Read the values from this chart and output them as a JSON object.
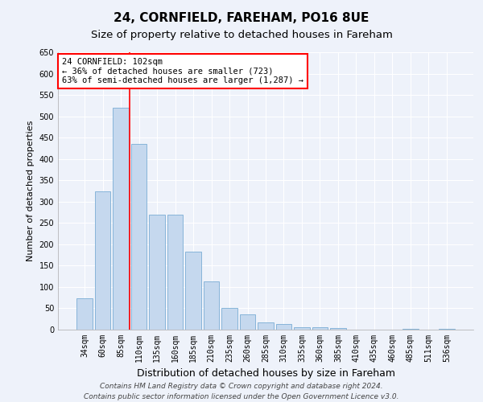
{
  "title": "24, CORNFIELD, FAREHAM, PO16 8UE",
  "subtitle": "Size of property relative to detached houses in Fareham",
  "xlabel": "Distribution of detached houses by size in Fareham",
  "ylabel": "Number of detached properties",
  "categories": [
    "34sqm",
    "60sqm",
    "85sqm",
    "110sqm",
    "135sqm",
    "160sqm",
    "185sqm",
    "210sqm",
    "235sqm",
    "260sqm",
    "285sqm",
    "310sqm",
    "335sqm",
    "360sqm",
    "385sqm",
    "410sqm",
    "435sqm",
    "460sqm",
    "485sqm",
    "511sqm",
    "536sqm"
  ],
  "values": [
    73,
    325,
    520,
    435,
    270,
    270,
    182,
    113,
    50,
    35,
    17,
    13,
    6,
    6,
    4,
    0,
    0,
    0,
    2,
    0,
    2
  ],
  "bar_color": "#c5d8ee",
  "bar_edge_color": "#7aadd4",
  "vline_x": 2.5,
  "vline_color": "red",
  "annotation_text": "24 CORNFIELD: 102sqm\n← 36% of detached houses are smaller (723)\n63% of semi-detached houses are larger (1,287) →",
  "annotation_box_color": "white",
  "annotation_box_edge": "red",
  "ylim": [
    0,
    650
  ],
  "yticks": [
    0,
    50,
    100,
    150,
    200,
    250,
    300,
    350,
    400,
    450,
    500,
    550,
    600,
    650
  ],
  "footer_line1": "Contains HM Land Registry data © Crown copyright and database right 2024.",
  "footer_line2": "Contains public sector information licensed under the Open Government Licence v3.0.",
  "bg_color": "#eef2fa",
  "grid_color": "#ffffff",
  "title_fontsize": 11,
  "subtitle_fontsize": 9.5,
  "xlabel_fontsize": 9,
  "ylabel_fontsize": 8,
  "tick_fontsize": 7,
  "annotation_fontsize": 7.5,
  "footer_fontsize": 6.5
}
